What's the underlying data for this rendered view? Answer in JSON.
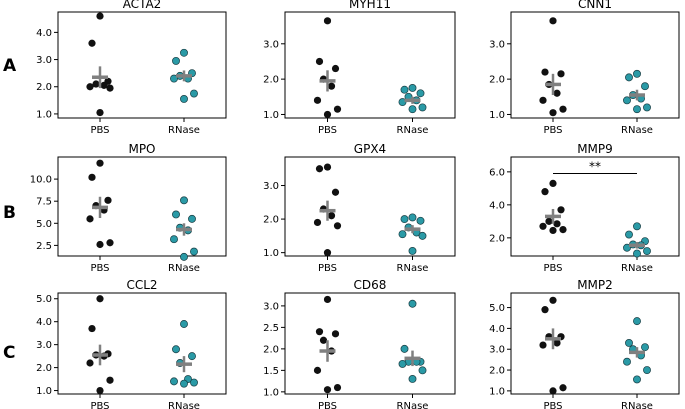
{
  "figure": {
    "row_labels": [
      "A",
      "B",
      "C"
    ],
    "colors": {
      "PBS": "#111111",
      "RNase": "#2a9aa6",
      "mean_bar": "#808080"
    }
  },
  "chart_data": [
    {
      "type": "scatter",
      "title": "ACTA2",
      "row": 0,
      "col": 0,
      "categories": [
        "PBS",
        "RNase"
      ],
      "ylim": [
        0.85,
        4.75
      ],
      "yticks": [
        1.0,
        2.0,
        3.0,
        4.0
      ],
      "ytick_labels": [
        "1.0",
        "2.0",
        "3.0",
        "4.0"
      ],
      "series": [
        {
          "name": "PBS",
          "values": [
            4.6,
            3.6,
            2.2,
            2.1,
            2.05,
            2.0,
            1.95,
            1.05
          ],
          "mean": 2.35,
          "err": 0.4
        },
        {
          "name": "RNase",
          "values": [
            3.25,
            2.95,
            2.5,
            2.4,
            2.3,
            2.3,
            1.75,
            1.55
          ],
          "mean": 2.4,
          "err": 0.2
        }
      ]
    },
    {
      "type": "scatter",
      "title": "MYH11",
      "row": 0,
      "col": 1,
      "categories": [
        "PBS",
        "RNase"
      ],
      "ylim": [
        0.9,
        3.9
      ],
      "yticks": [
        1.0,
        2.0,
        3.0
      ],
      "ytick_labels": [
        "1.0",
        "2.0",
        "3.0"
      ],
      "series": [
        {
          "name": "PBS",
          "values": [
            3.65,
            2.5,
            2.3,
            2.0,
            1.8,
            1.4,
            1.15,
            1.0
          ],
          "mean": 1.95,
          "err": 0.3
        },
        {
          "name": "RNase",
          "values": [
            1.75,
            1.7,
            1.6,
            1.5,
            1.4,
            1.35,
            1.2,
            1.15
          ],
          "mean": 1.4,
          "err": 0.1
        }
      ]
    },
    {
      "type": "scatter",
      "title": "CNN1",
      "row": 0,
      "col": 2,
      "categories": [
        "PBS",
        "RNase"
      ],
      "ylim": [
        0.9,
        3.9
      ],
      "yticks": [
        1.0,
        2.0,
        3.0
      ],
      "ytick_labels": [
        "1.0",
        "2.0",
        "3.0"
      ],
      "series": [
        {
          "name": "PBS",
          "values": [
            3.65,
            2.2,
            2.15,
            1.85,
            1.6,
            1.4,
            1.15,
            1.05
          ],
          "mean": 1.85,
          "err": 0.3
        },
        {
          "name": "RNase",
          "values": [
            2.15,
            2.05,
            1.8,
            1.55,
            1.45,
            1.4,
            1.2,
            1.15
          ],
          "mean": 1.55,
          "err": 0.15
        }
      ]
    },
    {
      "type": "scatter",
      "title": "MPO",
      "row": 1,
      "col": 0,
      "categories": [
        "PBS",
        "RNase"
      ],
      "ylim": [
        1.3,
        12.5
      ],
      "yticks": [
        2.5,
        5.0,
        7.5,
        10.0
      ],
      "ytick_labels": [
        "2.5",
        "5.0",
        "7.5",
        "10.0"
      ],
      "series": [
        {
          "name": "PBS",
          "values": [
            11.8,
            10.2,
            7.6,
            7.0,
            6.5,
            5.5,
            2.8,
            2.6
          ],
          "mean": 6.8,
          "err": 1.2
        },
        {
          "name": "RNase",
          "values": [
            7.6,
            6.0,
            5.5,
            4.5,
            4.2,
            3.2,
            1.8,
            1.2
          ],
          "mean": 4.3,
          "err": 0.7
        }
      ]
    },
    {
      "type": "scatter",
      "title": "GPX4",
      "row": 1,
      "col": 1,
      "categories": [
        "PBS",
        "RNase"
      ],
      "ylim": [
        0.9,
        3.85
      ],
      "yticks": [
        1.0,
        2.0,
        3.0
      ],
      "ytick_labels": [
        "1.0",
        "2.0",
        "3.0"
      ],
      "series": [
        {
          "name": "PBS",
          "values": [
            3.55,
            3.5,
            2.8,
            2.3,
            2.1,
            1.9,
            1.8,
            1.0
          ],
          "mean": 2.25,
          "err": 0.3
        },
        {
          "name": "RNase",
          "values": [
            2.05,
            2.0,
            1.95,
            1.75,
            1.6,
            1.55,
            1.5,
            1.05
          ],
          "mean": 1.7,
          "err": 0.12
        }
      ]
    },
    {
      "type": "scatter",
      "title": "MMP9",
      "row": 1,
      "col": 2,
      "categories": [
        "PBS",
        "RNase"
      ],
      "ylim": [
        0.9,
        6.9
      ],
      "yticks": [
        2.0,
        4.0,
        6.0
      ],
      "ytick_labels": [
        "2.0",
        "4.0",
        "6.0"
      ],
      "series": [
        {
          "name": "PBS",
          "values": [
            5.3,
            4.8,
            3.7,
            3.0,
            2.85,
            2.7,
            2.5,
            2.45
          ],
          "mean": 3.3,
          "err": 0.45
        },
        {
          "name": "RNase",
          "values": [
            2.7,
            2.2,
            1.8,
            1.6,
            1.55,
            1.4,
            1.2,
            1.05
          ],
          "mean": 1.55,
          "err": 0.2
        }
      ],
      "annotation": {
        "text": "**",
        "y": 5.9
      }
    },
    {
      "type": "scatter",
      "title": "CCL2",
      "row": 2,
      "col": 0,
      "categories": [
        "PBS",
        "RNase"
      ],
      "ylim": [
        0.85,
        5.25
      ],
      "yticks": [
        1.0,
        2.0,
        3.0,
        4.0,
        5.0
      ],
      "ytick_labels": [
        "1.0",
        "2.0",
        "3.0",
        "4.0",
        "5.0"
      ],
      "series": [
        {
          "name": "PBS",
          "values": [
            5.0,
            3.7,
            2.6,
            2.55,
            2.5,
            2.2,
            1.45,
            1.0
          ],
          "mean": 2.55,
          "err": 0.45
        },
        {
          "name": "RNase",
          "values": [
            3.9,
            2.8,
            2.5,
            2.2,
            1.5,
            1.4,
            1.35,
            1.3
          ],
          "mean": 2.15,
          "err": 0.35
        }
      ]
    },
    {
      "type": "scatter",
      "title": "CD68",
      "row": 2,
      "col": 1,
      "categories": [
        "PBS",
        "RNase"
      ],
      "ylim": [
        0.95,
        3.3
      ],
      "yticks": [
        1.0,
        1.5,
        2.0,
        2.5,
        3.0
      ],
      "ytick_labels": [
        "1.0",
        "1.5",
        "2.0",
        "2.5",
        "3.0"
      ],
      "series": [
        {
          "name": "PBS",
          "values": [
            3.15,
            2.4,
            2.35,
            2.2,
            1.95,
            1.5,
            1.1,
            1.05
          ],
          "mean": 1.95,
          "err": 0.25
        },
        {
          "name": "RNase",
          "values": [
            3.05,
            2.0,
            1.7,
            1.7,
            1.7,
            1.65,
            1.5,
            1.3
          ],
          "mean": 1.78,
          "err": 0.18
        }
      ]
    },
    {
      "type": "scatter",
      "title": "MMP2",
      "row": 2,
      "col": 2,
      "categories": [
        "PBS",
        "RNase"
      ],
      "ylim": [
        0.85,
        5.7
      ],
      "yticks": [
        1.0,
        2.0,
        3.0,
        4.0,
        5.0
      ],
      "ytick_labels": [
        "1.0",
        "2.0",
        "3.0",
        "4.0",
        "5.0"
      ],
      "series": [
        {
          "name": "PBS",
          "values": [
            5.35,
            4.9,
            3.6,
            3.6,
            3.3,
            3.2,
            1.15,
            1.0
          ],
          "mean": 3.5,
          "err": 0.5
        },
        {
          "name": "RNase",
          "values": [
            4.35,
            3.3,
            3.1,
            3.0,
            2.7,
            2.4,
            2.0,
            1.55
          ],
          "mean": 2.85,
          "err": 0.25
        }
      ]
    }
  ]
}
